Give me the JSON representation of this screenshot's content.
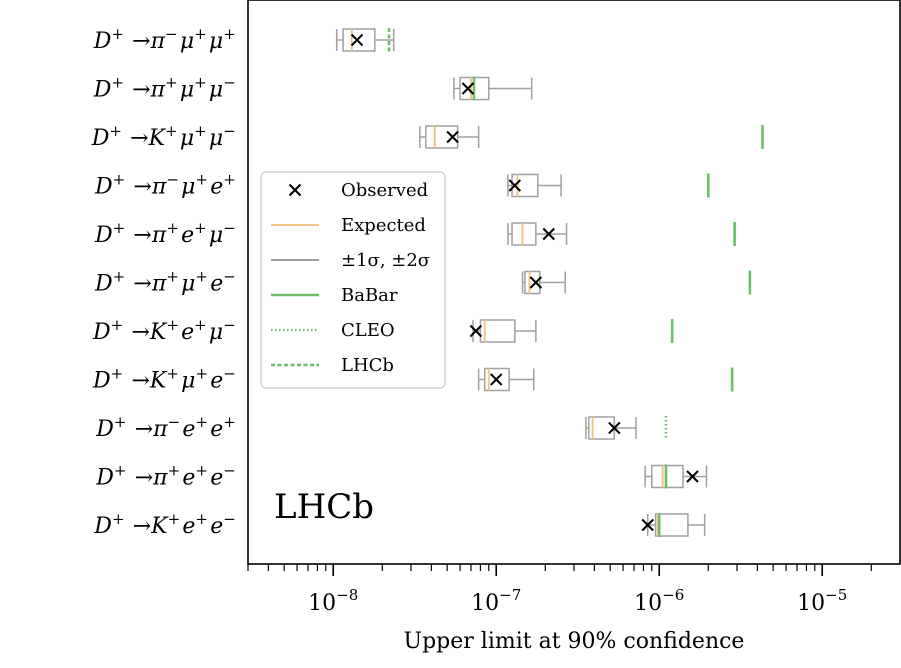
{
  "chart_data": {
    "type": "boxplot",
    "xlabel": "Upper limit at 90% confidence",
    "xscale": "log",
    "xlim": [
      3e-09,
      3e-05
    ],
    "xticks": [
      {
        "value": 1e-08,
        "base": "10",
        "exp": "−8"
      },
      {
        "value": 1e-07,
        "base": "10",
        "exp": "−7"
      },
      {
        "value": 1e-06,
        "base": "10",
        "exp": "−6"
      },
      {
        "value": 1e-05,
        "base": "10",
        "exp": "−5"
      }
    ],
    "watermark": "LHCb",
    "legend": {
      "placement": "center-left",
      "entries": [
        {
          "key": "observed",
          "label": "Observed"
        },
        {
          "key": "expected",
          "label": "Expected"
        },
        {
          "key": "sigma",
          "label": "±1σ, ±2σ"
        },
        {
          "key": "babar",
          "label": "BaBar"
        },
        {
          "key": "cleo",
          "label": "CLEO"
        },
        {
          "key": "lhcb",
          "label": "LHCb"
        }
      ]
    },
    "colors": {
      "box": "#a0a0a0",
      "expected": "#f5c48a",
      "previous": "#6dbf6a",
      "observed": "#000000"
    },
    "categories": [
      {
        "parent": "D",
        "charge": "+",
        "prod": "π",
        "pc": "−",
        "l1": "μ",
        "c1": "+",
        "l2": "μ",
        "c2": "+",
        "observed": 1.4e-08,
        "expected": 1.3e-08,
        "s1": [
          1.15e-08,
          1.8e-08
        ],
        "s2": [
          1.05e-08,
          2.35e-08
        ],
        "previous": {
          "value": 2.2e-08,
          "exp": "lhcb"
        }
      },
      {
        "parent": "D",
        "charge": "+",
        "prod": "π",
        "pc": "+",
        "l1": "μ",
        "c1": "+",
        "l2": "μ",
        "c2": "−",
        "observed": 6.7e-08,
        "expected": 7e-08,
        "s1": [
          6e-08,
          9e-08
        ],
        "s2": [
          5.5e-08,
          1.65e-07
        ],
        "previous": {
          "value": 7.3e-08,
          "exp": "babar"
        }
      },
      {
        "parent": "D",
        "charge": "+",
        "prod": "K",
        "pc": "+",
        "l1": "μ",
        "c1": "+",
        "l2": "μ",
        "c2": "−",
        "observed": 5.4e-08,
        "expected": 4.2e-08,
        "s1": [
          3.7e-08,
          5.8e-08
        ],
        "s2": [
          3.4e-08,
          7.8e-08
        ],
        "previous": {
          "value": 4.3e-06,
          "exp": "babar"
        }
      },
      {
        "parent": "D",
        "charge": "+",
        "prod": "π",
        "pc": "−",
        "l1": "μ",
        "c1": "+",
        "l2": "e",
        "c2": "+",
        "observed": 1.3e-07,
        "expected": 1.35e-07,
        "s1": [
          1.25e-07,
          1.8e-07
        ],
        "s2": [
          1.18e-07,
          2.5e-07
        ],
        "previous": {
          "value": 2e-06,
          "exp": "babar"
        }
      },
      {
        "parent": "D",
        "charge": "+",
        "prod": "π",
        "pc": "+",
        "l1": "e",
        "c1": "+",
        "l2": "μ",
        "c2": "−",
        "observed": 2.1e-07,
        "expected": 1.45e-07,
        "s1": [
          1.25e-07,
          1.75e-07
        ],
        "s2": [
          1.18e-07,
          2.7e-07
        ],
        "previous": {
          "value": 2.9e-06,
          "exp": "babar"
        }
      },
      {
        "parent": "D",
        "charge": "+",
        "prod": "π",
        "pc": "+",
        "l1": "μ",
        "c1": "+",
        "l2": "e",
        "c2": "−",
        "observed": 1.75e-07,
        "expected": 1.6e-07,
        "s1": [
          1.5e-07,
          1.85e-07
        ],
        "s2": [
          1.45e-07,
          2.65e-07
        ],
        "previous": {
          "value": 3.6e-06,
          "exp": "babar"
        }
      },
      {
        "parent": "D",
        "charge": "+",
        "prod": "K",
        "pc": "+",
        "l1": "e",
        "c1": "+",
        "l2": "μ",
        "c2": "−",
        "observed": 7.5e-08,
        "expected": 8.5e-08,
        "s1": [
          8e-08,
          1.3e-07
        ],
        "s2": [
          7.2e-08,
          1.75e-07
        ],
        "previous": {
          "value": 1.2e-06,
          "exp": "babar"
        }
      },
      {
        "parent": "D",
        "charge": "+",
        "prod": "K",
        "pc": "+",
        "l1": "μ",
        "c1": "+",
        "l2": "e",
        "c2": "−",
        "observed": 1e-07,
        "expected": 9e-08,
        "s1": [
          8.5e-08,
          1.2e-07
        ],
        "s2": [
          7.8e-08,
          1.7e-07
        ],
        "previous": {
          "value": 2.8e-06,
          "exp": "babar"
        }
      },
      {
        "parent": "D",
        "charge": "+",
        "prod": "π",
        "pc": "−",
        "l1": "e",
        "c1": "+",
        "l2": "e",
        "c2": "+",
        "observed": 5.3e-07,
        "expected": 3.9e-07,
        "s1": [
          3.7e-07,
          5.3e-07
        ],
        "s2": [
          3.55e-07,
          7.2e-07
        ],
        "previous": {
          "value": 1.1e-06,
          "exp": "cleo"
        }
      },
      {
        "parent": "D",
        "charge": "+",
        "prod": "π",
        "pc": "+",
        "l1": "e",
        "c1": "+",
        "l2": "e",
        "c2": "−",
        "observed": 1.6e-06,
        "expected": 1.05e-06,
        "s1": [
          9e-07,
          1.4e-06
        ],
        "s2": [
          8.2e-07,
          1.95e-06
        ],
        "previous": {
          "value": 1.1e-06,
          "exp": "babar"
        }
      },
      {
        "parent": "D",
        "charge": "+",
        "prod": "K",
        "pc": "+",
        "l1": "e",
        "c1": "+",
        "l2": "e",
        "c2": "−",
        "observed": 8.5e-07,
        "expected": 9.8e-07,
        "s1": [
          9.5e-07,
          1.5e-06
        ],
        "s2": [
          8.5e-07,
          1.9e-06
        ],
        "previous": {
          "value": 1e-06,
          "exp": "babar"
        }
      }
    ]
  }
}
